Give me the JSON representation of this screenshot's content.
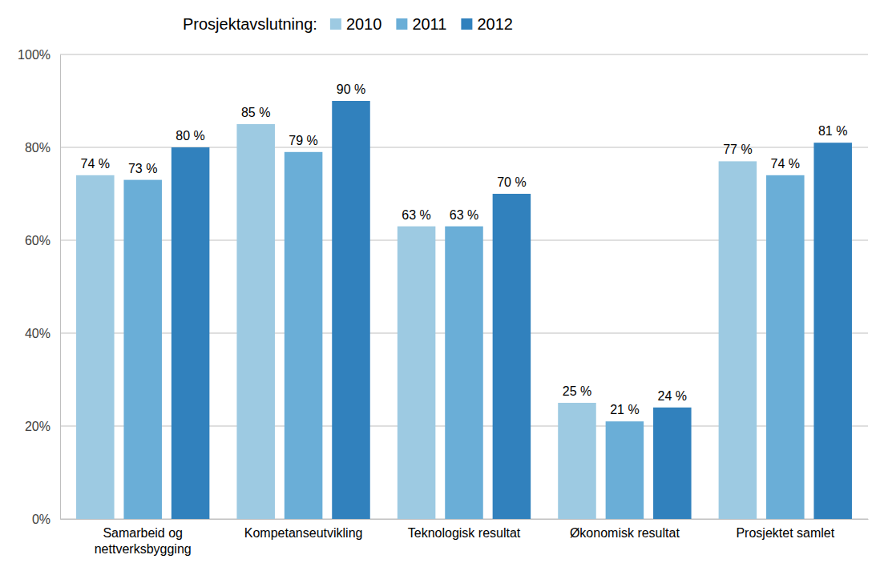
{
  "chart_data": {
    "type": "bar",
    "legend_title": "Prosjektavslutning:",
    "categories": [
      "Samarbeid og nettverksbygging",
      "Kompetanseutvikling",
      "Teknologisk resultat",
      "Økonomisk resultat",
      "Prosjektet samlet"
    ],
    "series": [
      {
        "name": "2010",
        "color": "#9dcae2",
        "values": [
          74,
          85,
          63,
          25,
          77
        ],
        "value_labels": [
          "74 %",
          "85 %",
          "63 %",
          "25 %",
          "77 %"
        ]
      },
      {
        "name": "2011",
        "color": "#6aaed7",
        "values": [
          73,
          79,
          63,
          21,
          74
        ],
        "value_labels": [
          "73 %",
          "79 %",
          "63 %",
          "21 %",
          "74 %"
        ]
      },
      {
        "name": "2012",
        "color": "#3181bd",
        "values": [
          80,
          90,
          70,
          24,
          81
        ],
        "value_labels": [
          "80 %",
          "90 %",
          "70 %",
          "24 %",
          "81 %"
        ]
      }
    ],
    "ylim": [
      0,
      100
    ],
    "yticks": [
      {
        "value": 0,
        "label": "0%"
      },
      {
        "value": 20,
        "label": "20%"
      },
      {
        "value": 40,
        "label": "40%"
      },
      {
        "value": 60,
        "label": "60%"
      },
      {
        "value": 80,
        "label": "80%"
      },
      {
        "value": 100,
        "label": "100%"
      }
    ],
    "grid": true,
    "legend": "top",
    "data_labels": true
  }
}
